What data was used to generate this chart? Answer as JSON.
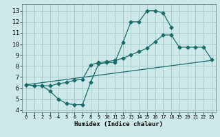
{
  "title": "",
  "xlabel": "Humidex (Indice chaleur)",
  "bg_color": "#cce8e8",
  "grid_color": "#aacccc",
  "line_color": "#1a6b6b",
  "xlim": [
    -0.5,
    23.5
  ],
  "ylim": [
    3.8,
    13.6
  ],
  "xticks": [
    0,
    1,
    2,
    3,
    4,
    5,
    6,
    7,
    8,
    9,
    10,
    11,
    12,
    13,
    14,
    15,
    16,
    17,
    18,
    19,
    20,
    21,
    22,
    23
  ],
  "yticks": [
    4,
    5,
    6,
    7,
    8,
    9,
    10,
    11,
    12,
    13
  ],
  "line1_x": [
    0,
    1,
    2,
    3,
    4,
    5,
    6,
    7,
    8,
    9,
    10,
    11,
    12,
    13,
    14,
    15,
    16,
    17,
    18
  ],
  "line1_y": [
    6.3,
    6.2,
    6.2,
    5.7,
    5.0,
    4.6,
    4.5,
    4.5,
    6.5,
    8.2,
    8.3,
    8.3,
    10.1,
    12.0,
    12.0,
    13.0,
    13.0,
    12.8,
    11.5
  ],
  "line2_x": [
    0,
    1,
    2,
    3,
    4,
    5,
    6,
    7,
    8,
    9,
    10,
    11,
    12,
    13,
    14,
    15,
    16,
    17,
    18,
    19,
    20,
    21,
    22,
    23
  ],
  "line2_y": [
    6.3,
    6.2,
    6.2,
    6.2,
    6.4,
    6.5,
    6.7,
    6.8,
    8.1,
    8.3,
    8.4,
    8.5,
    8.7,
    9.0,
    9.3,
    9.6,
    10.2,
    10.8,
    10.8,
    9.7,
    9.7,
    9.7,
    9.7,
    8.6
  ],
  "line3_x": [
    0,
    23
  ],
  "line3_y": [
    6.3,
    8.5
  ]
}
